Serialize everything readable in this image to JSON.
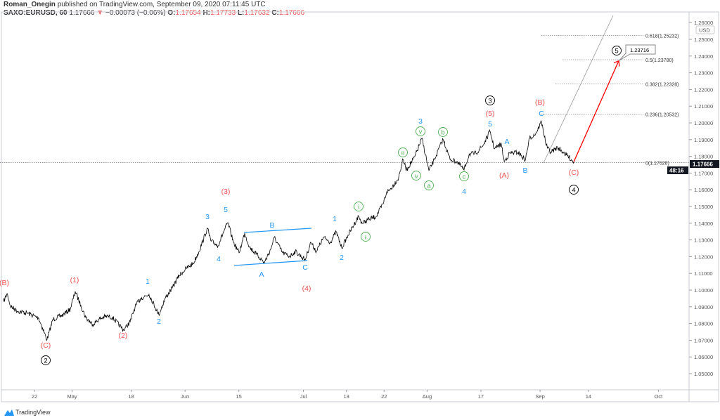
{
  "header": {
    "author": "Roman_Onegin",
    "published_text": "published on TradingView.com, September 09, 2020 07:11:45 UTC",
    "symbol": "SAXO:EURUSD, 60",
    "last": "1.17666",
    "change": "−0.00073 (−0.06%)",
    "o_label": "O:",
    "o": "1.17654",
    "h_label": "H:",
    "h": "1.17733",
    "l_label": "L:",
    "l": "1.17632",
    "c_label": "C:",
    "c": "1.17666",
    "down_icon": "triangle-down-icon"
  },
  "footer": {
    "brand": "TradingView",
    "icon": "tradingview-logo-icon"
  },
  "colors": {
    "up_down_red": "#ef5350",
    "wave_blue": "#2196f3",
    "wave_green": "#4caf50",
    "wave_black": "#000000",
    "projection": "#ff0000",
    "price": "#000000"
  },
  "chart_data": {
    "type": "line",
    "symbol": "SAXO:EURUSD",
    "interval": "60",
    "currency": "USD",
    "ylim": [
      1.04,
      1.262
    ],
    "yticks": [
      "1.05000",
      "1.06000",
      "1.07000",
      "1.08000",
      "1.09000",
      "1.10000",
      "1.11000",
      "1.12000",
      "1.13000",
      "1.14000",
      "1.15000",
      "1.16000",
      "1.17000",
      "1.18000",
      "1.19000",
      "1.20000",
      "1.21000",
      "1.22000",
      "1.23000",
      "1.24000",
      "1.25000",
      "1.26000"
    ],
    "xticks": [
      {
        "label": "22",
        "date": "2020-04-22"
      },
      {
        "label": "May",
        "date": "2020-05-01"
      },
      {
        "label": "18",
        "date": "2020-05-18"
      },
      {
        "label": "Jun",
        "date": "2020-06-01"
      },
      {
        "label": "15",
        "date": "2020-06-15"
      },
      {
        "label": "Jul",
        "date": "2020-07-01"
      },
      {
        "label": "13",
        "date": "2020-07-13"
      },
      {
        "label": "22",
        "date": "2020-07-22"
      },
      {
        "label": "Aug",
        "date": "2020-08-03"
      },
      {
        "label": "17",
        "date": "2020-08-17"
      },
      {
        "label": "Sep",
        "date": "2020-09-01"
      },
      {
        "label": "14",
        "date": "2020-09-14"
      },
      {
        "label": "Oct",
        "date": "2020-10-01"
      }
    ],
    "price_points": [
      [
        "2020-04-14 06",
        1.093
      ],
      [
        "2020-04-14 22",
        1.0979
      ],
      [
        "2020-04-15 13",
        1.0903
      ],
      [
        "2020-04-16 21",
        1.0874
      ],
      [
        "2020-04-20 20",
        1.0861
      ],
      [
        "2020-04-22 19",
        1.0832
      ],
      [
        "2020-04-24 08",
        1.0702
      ],
      [
        "2020-04-27 10",
        1.0824
      ],
      [
        "2020-04-29 09",
        1.0853
      ],
      [
        "2020-04-30 16",
        1.0887
      ],
      [
        "2020-05-01 14",
        1.0992
      ],
      [
        "2020-05-04 15",
        1.0908
      ],
      [
        "2020-05-05 13",
        1.0836
      ],
      [
        "2020-05-06 20",
        1.0794
      ],
      [
        "2020-05-07 22",
        1.0824
      ],
      [
        "2020-05-11 11",
        1.0845
      ],
      [
        "2020-05-12 12",
        1.0836
      ],
      [
        "2020-05-14 14",
        1.076
      ],
      [
        "2020-05-15 19",
        1.0811
      ],
      [
        "2020-05-18 17",
        1.0899
      ],
      [
        "2020-05-19 18",
        1.095
      ],
      [
        "2020-05-21 07",
        1.0975
      ],
      [
        "2020-05-25 03",
        1.0853
      ],
      [
        "2020-05-26 07",
        1.095
      ],
      [
        "2020-05-27 15",
        1.1013
      ],
      [
        "2020-05-28 22",
        1.1088
      ],
      [
        "2020-06-01 06",
        1.113
      ],
      [
        "2020-06-02 13",
        1.116
      ],
      [
        "2020-06-03 14",
        1.1231
      ],
      [
        "2020-06-05 04",
        1.137
      ],
      [
        "2020-06-05 19",
        1.1294
      ],
      [
        "2020-06-09 03",
        1.1265
      ],
      [
        "2020-06-10 04",
        1.1349
      ],
      [
        "2020-06-10 23",
        1.1403
      ],
      [
        "2020-06-12 00",
        1.1286
      ],
      [
        "2020-06-15 01",
        1.1223
      ],
      [
        "2020-06-16 02",
        1.134
      ],
      [
        "2020-06-17 00",
        1.1256
      ],
      [
        "2020-06-18 07",
        1.1214
      ],
      [
        "2020-06-19 18",
        1.1164
      ],
      [
        "2020-06-22 22",
        1.1244
      ],
      [
        "2020-06-23 14",
        1.1315
      ],
      [
        "2020-06-25 03",
        1.1223
      ],
      [
        "2020-06-26 11",
        1.1202
      ],
      [
        "2020-06-29 12",
        1.1231
      ],
      [
        "2020-07-01 08",
        1.1181
      ],
      [
        "2020-07-02 09",
        1.1286
      ],
      [
        "2020-07-03 10",
        1.1231
      ],
      [
        "2020-07-06 18",
        1.1315
      ],
      [
        "2020-07-08 01",
        1.1286
      ],
      [
        "2020-07-09 02",
        1.1349
      ],
      [
        "2020-07-10 03",
        1.1252
      ],
      [
        "2020-07-13 07",
        1.1328
      ],
      [
        "2020-07-15 06",
        1.1441
      ],
      [
        "2020-07-15 22",
        1.1399
      ],
      [
        "2020-07-17 05",
        1.1424
      ],
      [
        "2020-07-20 13",
        1.1441
      ],
      [
        "2020-07-21 20",
        1.1517
      ],
      [
        "2020-07-22 12",
        1.1588
      ],
      [
        "2020-07-23 03",
        1.1601
      ],
      [
        "2020-07-24 17",
        1.1672
      ],
      [
        "2020-07-27 12",
        1.1782
      ],
      [
        "2020-07-28 04",
        1.1718
      ],
      [
        "2020-07-29 17",
        1.1798
      ],
      [
        "2020-07-31 01",
        1.1908
      ],
      [
        "2020-08-03 08",
        1.1714
      ],
      [
        "2020-08-04 09",
        1.1782
      ],
      [
        "2020-08-05 23",
        1.1903
      ],
      [
        "2020-08-07 06",
        1.1782
      ],
      [
        "2020-08-10 13",
        1.1769
      ],
      [
        "2020-08-11 21",
        1.1718
      ],
      [
        "2020-08-12 19",
        1.1811
      ],
      [
        "2020-08-14 02",
        1.1819
      ],
      [
        "2020-08-17 10",
        1.1866
      ],
      [
        "2020-08-18 17",
        1.195
      ],
      [
        "2020-08-19 12",
        1.1845
      ],
      [
        "2020-08-20 19",
        1.1874
      ],
      [
        "2020-08-21 08",
        1.1769
      ],
      [
        "2020-08-24 09",
        1.1819
      ],
      [
        "2020-08-25 22",
        1.1824
      ],
      [
        "2020-08-27 06",
        1.1777
      ],
      [
        "2020-08-28 01",
        1.1908
      ],
      [
        "2020-08-31 05",
        1.1937
      ],
      [
        "2020-09-01 06",
        1.2008
      ],
      [
        "2020-09-02 04",
        1.1866
      ],
      [
        "2020-09-02 23",
        1.1824
      ],
      [
        "2020-09-04 06",
        1.1853
      ],
      [
        "2020-09-07 13",
        1.1819
      ],
      [
        "2020-09-09 07",
        1.17666
      ]
    ],
    "last_price": "1.17666",
    "countdown": "48:16",
    "fib_levels": [
      {
        "ratio": "0",
        "price": "1.17628",
        "label": "0(1.17628)"
      },
      {
        "ratio": "0.236",
        "price": "1.20532",
        "label": "0.236(1.20532)"
      },
      {
        "ratio": "0.382",
        "price": "1.22328",
        "label": "0.382(1.22328)"
      },
      {
        "ratio": "0.5",
        "price": "1.23780",
        "label": "0.5(1.23780)"
      },
      {
        "ratio": "0.618",
        "price": "1.25232",
        "label": "0.618(1.25232)"
      }
    ],
    "projection_target": "1.23716",
    "wave_labels": [
      {
        "text": "(B)",
        "color": "red"
      },
      {
        "text": "(1)",
        "color": "red"
      },
      {
        "text": "(C)",
        "color": "red"
      },
      {
        "text": "2",
        "color": "black",
        "circled": true
      },
      {
        "text": "(2)",
        "color": "red"
      },
      {
        "text": "1",
        "color": "blue"
      },
      {
        "text": "2",
        "color": "blue"
      },
      {
        "text": "3",
        "color": "blue"
      },
      {
        "text": "4",
        "color": "blue"
      },
      {
        "text": "5",
        "color": "blue"
      },
      {
        "text": "(3)",
        "color": "red"
      },
      {
        "text": "B",
        "color": "blue"
      },
      {
        "text": "A",
        "color": "blue"
      },
      {
        "text": "C",
        "color": "blue"
      },
      {
        "text": "(4)",
        "color": "red"
      },
      {
        "text": "1",
        "color": "blue"
      },
      {
        "text": "2",
        "color": "blue"
      },
      {
        "text": "i",
        "color": "green",
        "circled": true
      },
      {
        "text": "ii",
        "color": "green",
        "circled": true
      },
      {
        "text": "iii",
        "color": "green",
        "circled": true
      },
      {
        "text": "iv",
        "color": "green",
        "circled": true
      },
      {
        "text": "v",
        "color": "green",
        "circled": true
      },
      {
        "text": "3",
        "color": "blue"
      },
      {
        "text": "a",
        "color": "green",
        "circled": true
      },
      {
        "text": "b",
        "color": "green",
        "circled": true
      },
      {
        "text": "c",
        "color": "green",
        "circled": true
      },
      {
        "text": "4",
        "color": "blue"
      },
      {
        "text": "5",
        "color": "blue"
      },
      {
        "text": "(5)",
        "color": "red"
      },
      {
        "text": "3",
        "color": "black",
        "circled": true
      },
      {
        "text": "A",
        "color": "blue"
      },
      {
        "text": "(A)",
        "color": "red"
      },
      {
        "text": "B",
        "color": "blue"
      },
      {
        "text": "C",
        "color": "blue"
      },
      {
        "text": "(B)",
        "color": "red"
      },
      {
        "text": "(C)",
        "color": "red"
      },
      {
        "text": "4",
        "color": "black",
        "circled": true
      },
      {
        "text": "5",
        "color": "black",
        "circled": true
      }
    ]
  }
}
